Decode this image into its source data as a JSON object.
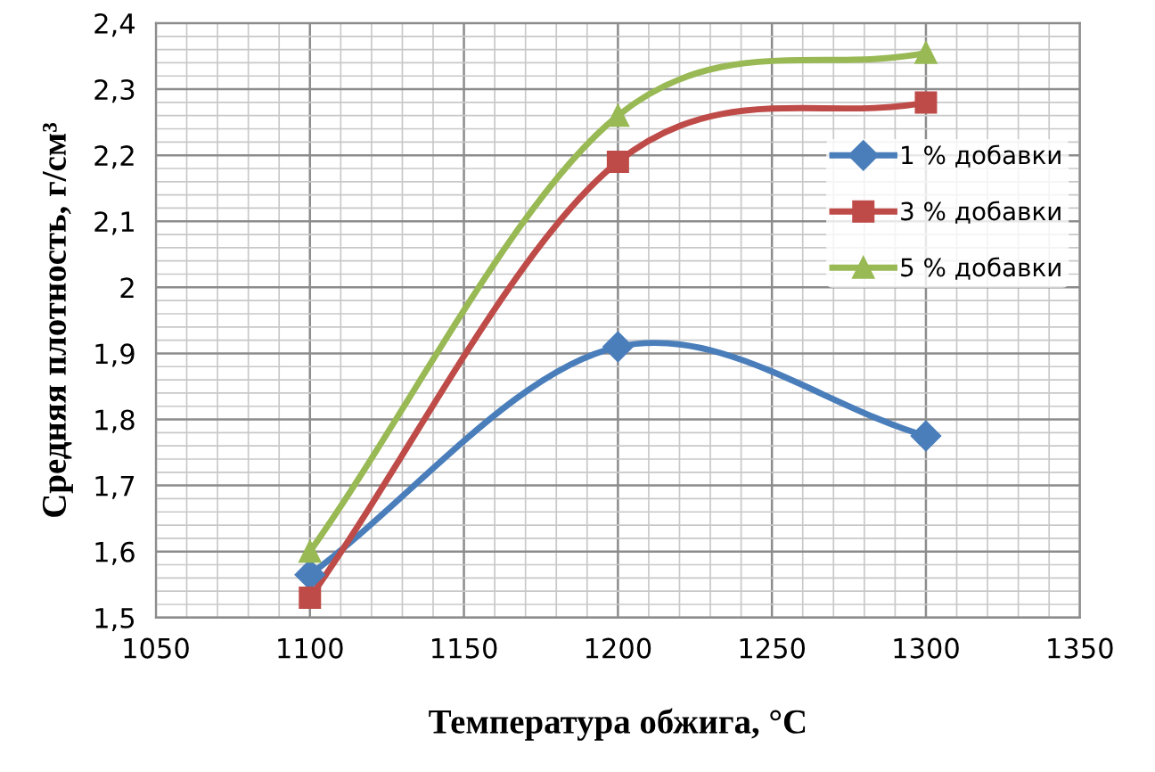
{
  "chart_data": {
    "type": "line",
    "xlabel": "Температура обжига, °C",
    "ylabel": "Средняя плотность, г/см³",
    "x": [
      1100,
      1200,
      1300
    ],
    "series": [
      {
        "name": "1 % добавки",
        "color": "#4a7ebb",
        "values": [
          1.565,
          1.91,
          1.775
        ],
        "marker": "diamond"
      },
      {
        "name": "3 % добавки",
        "color": "#be4b48",
        "values": [
          1.53,
          2.19,
          2.28
        ],
        "marker": "square"
      },
      {
        "name": "5 % добавки",
        "color": "#98b954",
        "values": [
          1.6,
          2.26,
          2.355
        ],
        "marker": "triangle"
      }
    ],
    "xlim": [
      1050,
      1350
    ],
    "xticks": [
      1050,
      1100,
      1150,
      1200,
      1250,
      1300,
      1350
    ],
    "ylim": [
      1.5,
      2.4
    ],
    "yticks": [
      {
        "value": 1.5,
        "label": "1,5"
      },
      {
        "value": 1.6,
        "label": "1,6"
      },
      {
        "value": 1.7,
        "label": "1,7"
      },
      {
        "value": 1.8,
        "label": "1,8"
      },
      {
        "value": 1.9,
        "label": "1,9"
      },
      {
        "value": 2,
        "label": "2"
      },
      {
        "value": 2.1,
        "label": "2,1"
      },
      {
        "value": 2.2,
        "label": "2,2"
      },
      {
        "value": 2.3,
        "label": "2,3"
      },
      {
        "value": 2.4,
        "label": "2,4"
      }
    ],
    "grid": true,
    "legend": "right",
    "line_style": "solid"
  }
}
